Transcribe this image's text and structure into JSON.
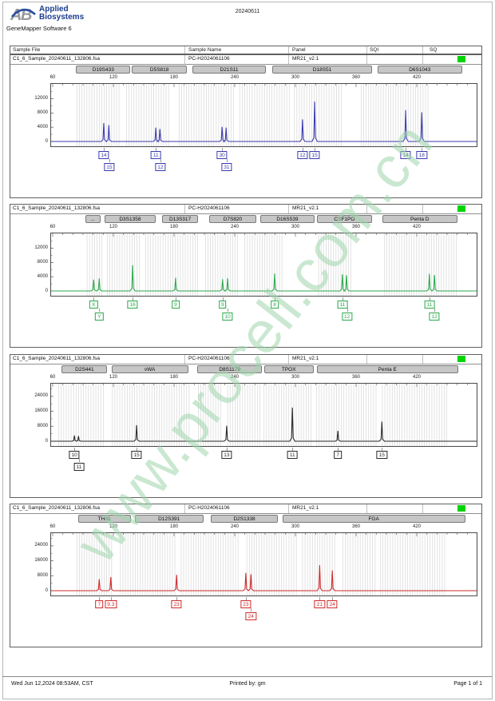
{
  "page": {
    "brand_line1": "Applied",
    "brand_line2": "Biosystems",
    "doc_number": "20240611",
    "software": "GeneMapper Software 6"
  },
  "table_header": {
    "sample_file": "Sample File",
    "sample_name": "Sample Name",
    "panel": "Panel",
    "sqi": "SQI",
    "sq": "SQ"
  },
  "sample": {
    "file": "C1_6_Sample_20240611_132806.fsa",
    "name": "PC-H2024061106",
    "panel": "MR21_v2.1",
    "sq_color": "#00d400"
  },
  "watermark": "www.procell.com.cn",
  "footer": {
    "date": "Wed Jun 12,2024 08:53AM, CST",
    "printed_by": "Printed by: gm",
    "page": "Page 1 of 1"
  },
  "axis": {
    "ticks": [
      60,
      120,
      180,
      240,
      300,
      360,
      420
    ],
    "unit": "bp"
  },
  "panels": [
    {
      "type": "electropherogram",
      "color": "#3b3bb0",
      "ymax": 15500,
      "yticks": [
        0,
        4000,
        8000,
        12000
      ],
      "markers": [
        {
          "label": "D19S433",
          "from": 83,
          "to": 137
        },
        {
          "label": "D5S818",
          "from": 138,
          "to": 193
        },
        {
          "label": "D21S11",
          "from": 198,
          "to": 271
        },
        {
          "label": "D18S51",
          "from": 277,
          "to": 376
        },
        {
          "label": "D6S1043",
          "from": 381,
          "to": 465
        }
      ],
      "bins": [
        {
          "from": 84,
          "to": 127
        },
        {
          "from": 133,
          "to": 176
        },
        {
          "from": 185,
          "to": 239
        },
        {
          "from": 245,
          "to": 294
        },
        {
          "from": 299,
          "to": 347
        },
        {
          "from": 365,
          "to": 433
        }
      ],
      "peaks": [
        {
          "bp": 110.5,
          "rfu": 5200
        },
        {
          "bp": 115.5,
          "rfu": 4600
        },
        {
          "bp": 162,
          "rfu": 3900
        },
        {
          "bp": 166,
          "rfu": 3500
        },
        {
          "bp": 227.5,
          "rfu": 4100
        },
        {
          "bp": 231.5,
          "rfu": 3900
        },
        {
          "bp": 307,
          "rfu": 6200
        },
        {
          "bp": 319,
          "rfu": 11200
        },
        {
          "bp": 409,
          "rfu": 8800
        },
        {
          "bp": 425,
          "rfu": 8200
        }
      ],
      "alleles": [
        {
          "bp": 110.5,
          "row": 0,
          "label": "14"
        },
        {
          "bp": 116,
          "row": 1,
          "label": "15"
        },
        {
          "bp": 162,
          "row": 0,
          "label": "11"
        },
        {
          "bp": 166.5,
          "row": 1,
          "label": "12"
        },
        {
          "bp": 227.5,
          "row": 0,
          "label": "30"
        },
        {
          "bp": 232,
          "row": 1,
          "label": "31"
        },
        {
          "bp": 307,
          "row": 0,
          "label": "12"
        },
        {
          "bp": 319,
          "row": 0,
          "label": "15"
        },
        {
          "bp": 409,
          "row": 0,
          "label": "14"
        },
        {
          "bp": 425,
          "row": 0,
          "label": "18"
        }
      ]
    },
    {
      "type": "electropherogram",
      "color": "#2ca84c",
      "ymax": 15500,
      "yticks": [
        0,
        4000,
        8000,
        12000
      ],
      "markers": [
        {
          "label": "...",
          "from": 92,
          "to": 107
        },
        {
          "label": "D3S1358",
          "from": 111,
          "to": 162
        },
        {
          "label": "D13S317",
          "from": 168,
          "to": 204
        },
        {
          "label": "D7S820",
          "from": 215,
          "to": 261
        },
        {
          "label": "D16S539",
          "from": 265,
          "to": 319
        },
        {
          "label": "CSF1PO",
          "from": 321,
          "to": 376
        },
        {
          "label": "Penta D",
          "from": 386,
          "to": 460
        }
      ],
      "bins": [
        {
          "from": 94,
          "to": 110
        },
        {
          "from": 114,
          "to": 148
        },
        {
          "from": 152,
          "to": 204
        },
        {
          "from": 211,
          "to": 245
        },
        {
          "from": 250,
          "to": 287
        },
        {
          "from": 323,
          "to": 356
        },
        {
          "from": 388,
          "to": 459
        }
      ],
      "peaks": [
        {
          "bp": 100.5,
          "rfu": 3200
        },
        {
          "bp": 106,
          "rfu": 3500
        },
        {
          "bp": 139,
          "rfu": 7200
        },
        {
          "bp": 181.5,
          "rfu": 3700
        },
        {
          "bp": 228,
          "rfu": 3300
        },
        {
          "bp": 233,
          "rfu": 3600
        },
        {
          "bp": 279.5,
          "rfu": 4900
        },
        {
          "bp": 346.5,
          "rfu": 4700
        },
        {
          "bp": 350.5,
          "rfu": 4400
        },
        {
          "bp": 432.5,
          "rfu": 4800
        },
        {
          "bp": 437.5,
          "rfu": 4500
        }
      ],
      "alleles": [
        {
          "bp": 100.5,
          "row": 0,
          "label": "X"
        },
        {
          "bp": 106,
          "row": 1,
          "label": "Y"
        },
        {
          "bp": 139,
          "row": 0,
          "label": "16"
        },
        {
          "bp": 181.5,
          "row": 0,
          "label": "9"
        },
        {
          "bp": 228,
          "row": 0,
          "label": "9"
        },
        {
          "bp": 233,
          "row": 1,
          "label": "10"
        },
        {
          "bp": 279.5,
          "row": 0,
          "label": "8"
        },
        {
          "bp": 346.5,
          "row": 0,
          "label": "11"
        },
        {
          "bp": 351,
          "row": 1,
          "label": "12"
        },
        {
          "bp": 432.5,
          "row": 0,
          "label": "11"
        },
        {
          "bp": 437.5,
          "row": 1,
          "label": "12"
        }
      ]
    },
    {
      "type": "electropherogram",
      "color": "#2a2a2a",
      "ymax": 29500,
      "yticks": [
        0,
        8000,
        16000,
        24000
      ],
      "markers": [
        {
          "label": "D2S441",
          "from": 69,
          "to": 114
        },
        {
          "label": "vWA",
          "from": 118,
          "to": 194
        },
        {
          "label": "D8S1179",
          "from": 203,
          "to": 267
        },
        {
          "label": "TPOX",
          "from": 269,
          "to": 318
        },
        {
          "label": "Penta E",
          "from": 321,
          "to": 461
        }
      ],
      "bins": [
        {
          "from": 66,
          "to": 111
        },
        {
          "from": 119,
          "to": 195
        },
        {
          "from": 204,
          "to": 227
        },
        {
          "from": 233,
          "to": 266
        },
        {
          "from": 269,
          "to": 317
        },
        {
          "from": 321,
          "to": 381
        },
        {
          "from": 386,
          "to": 451
        }
      ],
      "peaks": [
        {
          "bp": 81.5,
          "rfu": 3000
        },
        {
          "bp": 85.5,
          "rfu": 2800
        },
        {
          "bp": 143,
          "rfu": 8600
        },
        {
          "bp": 232,
          "rfu": 8300
        },
        {
          "bp": 297,
          "rfu": 18000
        },
        {
          "bp": 342,
          "rfu": 5500
        },
        {
          "bp": 385.5,
          "rfu": 10500
        }
      ],
      "alleles": [
        {
          "bp": 81.5,
          "row": 0,
          "label": "10"
        },
        {
          "bp": 86,
          "row": 1,
          "label": "11"
        },
        {
          "bp": 143,
          "row": 0,
          "label": "15"
        },
        {
          "bp": 232,
          "row": 0,
          "label": "13"
        },
        {
          "bp": 297,
          "row": 0,
          "label": "11"
        },
        {
          "bp": 342,
          "row": 0,
          "label": "7"
        },
        {
          "bp": 385.5,
          "row": 0,
          "label": "15"
        }
      ]
    },
    {
      "type": "electropherogram",
      "color": "#cc2b2b",
      "ymax": 29500,
      "yticks": [
        0,
        8000,
        16000,
        24000
      ],
      "markers": [
        {
          "label": "TH01",
          "from": 85,
          "to": 137
        },
        {
          "label": "D12S391",
          "from": 141,
          "to": 209
        },
        {
          "label": "D2S1338",
          "from": 216,
          "to": 283
        },
        {
          "label": "FGA",
          "from": 287,
          "to": 468
        }
      ],
      "bins": [
        {
          "from": 84,
          "to": 119
        },
        {
          "from": 127,
          "to": 181
        },
        {
          "from": 187,
          "to": 245
        },
        {
          "from": 252,
          "to": 302
        },
        {
          "from": 307,
          "to": 340
        },
        {
          "from": 347,
          "to": 380
        },
        {
          "from": 384,
          "to": 448
        }
      ],
      "peaks": [
        {
          "bp": 106,
          "rfu": 6200
        },
        {
          "bp": 117.5,
          "rfu": 7300
        },
        {
          "bp": 182.5,
          "rfu": 8500
        },
        {
          "bp": 251,
          "rfu": 9500
        },
        {
          "bp": 256,
          "rfu": 8800
        },
        {
          "bp": 324,
          "rfu": 13700
        },
        {
          "bp": 336.5,
          "rfu": 10800
        }
      ],
      "alleles": [
        {
          "bp": 106,
          "row": 0,
          "label": "7"
        },
        {
          "bp": 117.5,
          "row": 0,
          "label": "9.3"
        },
        {
          "bp": 182.5,
          "row": 0,
          "label": "23"
        },
        {
          "bp": 251,
          "row": 0,
          "label": "23"
        },
        {
          "bp": 256,
          "row": 1,
          "label": "24"
        },
        {
          "bp": 324,
          "row": 0,
          "label": "21"
        },
        {
          "bp": 336.5,
          "row": 0,
          "label": "24"
        }
      ]
    }
  ]
}
